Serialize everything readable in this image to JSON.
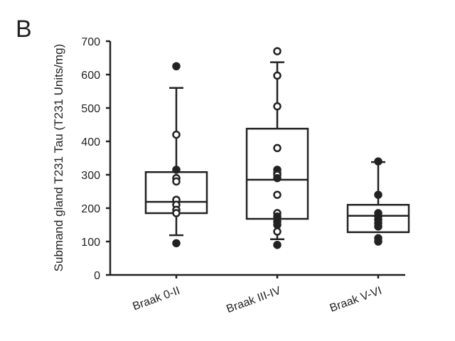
{
  "panel_label": "B",
  "chart_data": {
    "type": "box",
    "title": "",
    "xlabel": "",
    "ylabel": "Submand gland T231 Tau (T231 Units/mg)",
    "ylim": [
      0,
      700
    ],
    "yticks": [
      0,
      100,
      200,
      300,
      400,
      500,
      600,
      700
    ],
    "grid": false,
    "categories": [
      "Braak 0-II",
      "Braak III-IV",
      "Braak V-VI"
    ],
    "boxes": [
      {
        "q1": 185,
        "median": 219,
        "q3": 308,
        "whisker_low": 119,
        "whisker_high": 560,
        "points": [
          {
            "v": 625,
            "f": true
          },
          {
            "v": 420,
            "f": false
          },
          {
            "v": 315,
            "f": true
          },
          {
            "v": 290,
            "f": false
          },
          {
            "v": 280,
            "f": false
          },
          {
            "v": 225,
            "f": false
          },
          {
            "v": 210,
            "f": false
          },
          {
            "v": 195,
            "f": false
          },
          {
            "v": 185,
            "f": false
          },
          {
            "v": 95,
            "f": true
          }
        ]
      },
      {
        "q1": 168,
        "median": 285,
        "q3": 438,
        "whisker_low": 107,
        "whisker_high": 637,
        "points": [
          {
            "v": 670,
            "f": false
          },
          {
            "v": 597,
            "f": false
          },
          {
            "v": 505,
            "f": false
          },
          {
            "v": 380,
            "f": false
          },
          {
            "v": 315,
            "f": true
          },
          {
            "v": 305,
            "f": true
          },
          {
            "v": 300,
            "f": false
          },
          {
            "v": 290,
            "f": true
          },
          {
            "v": 240,
            "f": false
          },
          {
            "v": 185,
            "f": false
          },
          {
            "v": 175,
            "f": true
          },
          {
            "v": 160,
            "f": true
          },
          {
            "v": 150,
            "f": true
          },
          {
            "v": 130,
            "f": false
          },
          {
            "v": 90,
            "f": true
          }
        ]
      },
      {
        "q1": 128,
        "median": 177,
        "q3": 210,
        "whisker_low": 128,
        "whisker_high": 338,
        "points": [
          {
            "v": 340,
            "f": true
          },
          {
            "v": 240,
            "f": true
          },
          {
            "v": 185,
            "f": true
          },
          {
            "v": 175,
            "f": true
          },
          {
            "v": 165,
            "f": true
          },
          {
            "v": 155,
            "f": true
          },
          {
            "v": 145,
            "f": true
          },
          {
            "v": 110,
            "f": true
          },
          {
            "v": 100,
            "f": true
          }
        ]
      }
    ]
  }
}
